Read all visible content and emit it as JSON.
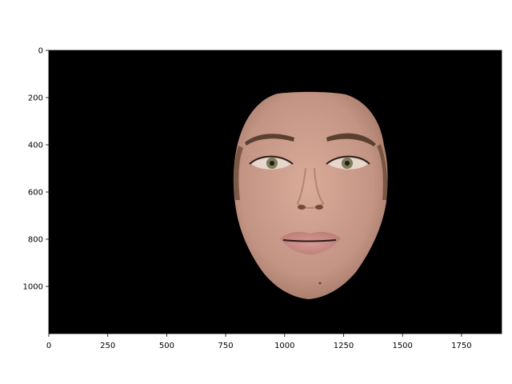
{
  "chart_data": {
    "type": "image",
    "image_width": 1920,
    "image_height": 1200,
    "xlim": [
      0,
      1920
    ],
    "ylim": [
      1200,
      0
    ],
    "x_ticks": [
      0,
      250,
      500,
      750,
      1000,
      1250,
      1500,
      1750
    ],
    "y_ticks": [
      0,
      200,
      400,
      600,
      800,
      1000
    ],
    "x_tick_labels": [
      "0",
      "250",
      "500",
      "750",
      "1000",
      "1250",
      "1500",
      "1750"
    ],
    "y_tick_labels": [
      "0",
      "200",
      "400",
      "600",
      "800",
      "1000"
    ],
    "xlabel": "",
    "ylabel": "",
    "title": "",
    "background_color": "#000000",
    "content": "face"
  },
  "colors": {
    "background": "#000000",
    "skin": "#c89a88",
    "skin_shadow": "#a97c6b",
    "hair_edge": "#6b4a38",
    "eyebrow": "#5a4030",
    "iris": "#7c7a5a",
    "lips": "#c98a86"
  }
}
